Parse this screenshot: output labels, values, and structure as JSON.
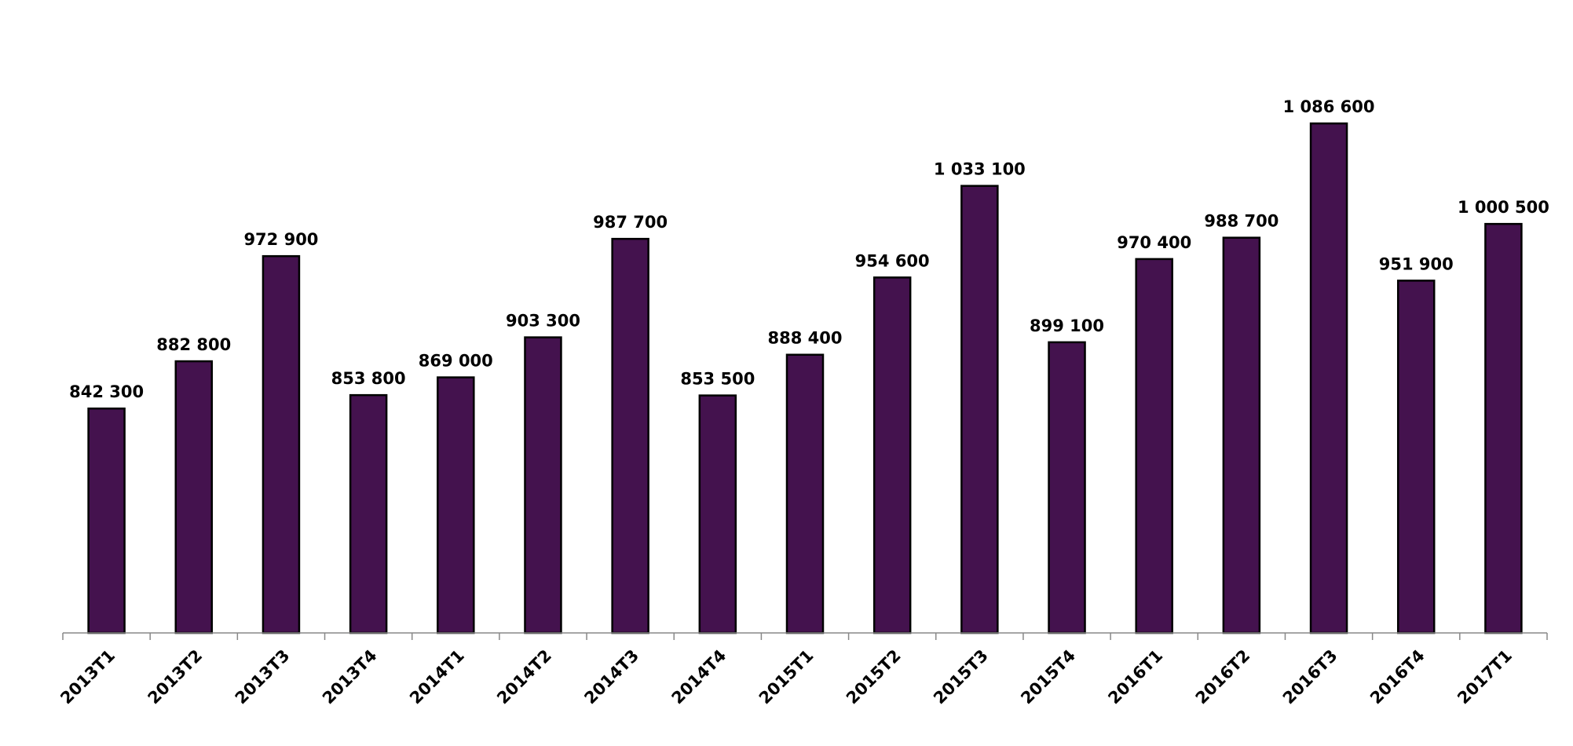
{
  "chart_data": {
    "type": "bar",
    "categories": [
      "2013T1",
      "2013T2",
      "2013T3",
      "2013T4",
      "2014T1",
      "2014T2",
      "2014T3",
      "2014T4",
      "2015T1",
      "2015T2",
      "2015T3",
      "2015T4",
      "2016T1",
      "2016T2",
      "2016T3",
      "2016T4",
      "2017T1"
    ],
    "values": [
      842300,
      882800,
      972900,
      853800,
      869000,
      903300,
      987700,
      853500,
      888400,
      954600,
      1033100,
      899100,
      970400,
      988700,
      1086600,
      951900,
      1000500
    ],
    "value_labels": [
      "842 300",
      "882 800",
      "972 900",
      "853 800",
      "869 000",
      "903 300",
      "987 700",
      "853 500",
      "888 400",
      "954 600",
      "1 033 100",
      "899 100",
      "970 400",
      "988 700",
      "1 086 600",
      "951 900",
      "1 000 500"
    ],
    "title": "",
    "xlabel": "",
    "ylabel": "",
    "ylim": [
      650000,
      1150000
    ],
    "grid": false,
    "colors": {
      "bar": "#44124e"
    }
  }
}
